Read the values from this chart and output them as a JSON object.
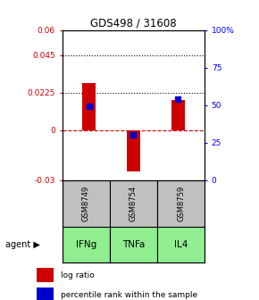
{
  "title": "GDS498 / 31608",
  "categories": [
    "IFNg",
    "TNFa",
    "IL4"
  ],
  "sample_ids": [
    "GSM8749",
    "GSM8754",
    "GSM8759"
  ],
  "log_ratios": [
    0.028,
    -0.025,
    0.018
  ],
  "percentile_ranks": [
    49,
    30,
    54
  ],
  "bar_color": "#cc0000",
  "dot_color": "#0000cc",
  "left_ylim": [
    -0.03,
    0.06
  ],
  "right_ylim": [
    0,
    100
  ],
  "left_yticks": [
    -0.03,
    0,
    0.0225,
    0.045,
    0.06
  ],
  "left_yticklabels": [
    "-0.03",
    "0",
    "0.0225",
    "0.045",
    "0.06"
  ],
  "right_yticks": [
    0,
    25,
    50,
    75,
    100
  ],
  "right_yticklabels": [
    "0",
    "25",
    "50",
    "75",
    "100%"
  ],
  "hline_dotted": [
    0.0225,
    0.045
  ],
  "hline_dashed_red": 0.0,
  "cell_color": "#c0c0c0",
  "agent_color": "#90ee90",
  "agent_label": "agent",
  "legend_bar_label": "log ratio",
  "legend_dot_label": "percentile rank within the sample"
}
